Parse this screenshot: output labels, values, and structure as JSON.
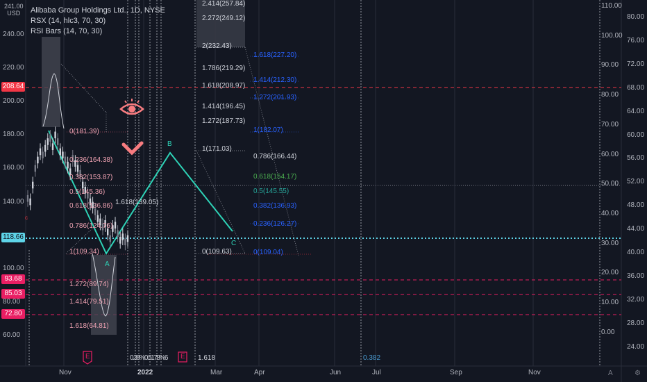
{
  "symbol": {
    "title": "Alibaba Group Holdings Ltd., 1D, NYSE",
    "indicator1": "RSX (14, hlc3, 70, 30)",
    "indicator2": "RSI Bars (14, 70, 30)"
  },
  "axis": {
    "currency": "USD",
    "top_value": "241.00",
    "left_ticks": [
      {
        "label": "240.00",
        "price": 240
      },
      {
        "label": "220.00",
        "price": 220
      },
      {
        "label": "200.00",
        "price": 200
      },
      {
        "label": "180.00",
        "price": 180
      },
      {
        "label": "160.00",
        "price": 160
      },
      {
        "label": "140.00",
        "price": 140
      },
      {
        "label": "100.00",
        "price": 100
      },
      {
        "label": "80.00",
        "price": 80
      },
      {
        "label": "60.00",
        "price": 60
      }
    ],
    "price_labels": [
      {
        "label": "208.64",
        "price": 208.64,
        "color": "#f23645"
      },
      {
        "label": "118.66",
        "price": 118.66,
        "color": "#5ed4e8"
      },
      {
        "label": "93.68",
        "price": 93.68,
        "color": "#e91e63"
      },
      {
        "label": "85.03",
        "price": 85.03,
        "color": "#e91e63"
      },
      {
        "label": "72.80",
        "price": 72.8,
        "color": "#e91e63"
      }
    ],
    "rsi_ticks": [
      "110.00",
      "100.00",
      "90.00",
      "80.00",
      "70.00",
      "60.00",
      "50.00",
      "40.00",
      "30.00",
      "20.00",
      "10.00",
      "0.00"
    ],
    "right_ticks": [
      "80.00",
      "76.00",
      "72.00",
      "68.00",
      "64.00",
      "60.00",
      "56.00",
      "52.00",
      "48.00",
      "44.00",
      "40.00",
      "36.00",
      "32.00",
      "28.00",
      "24.00"
    ],
    "x_ticks": [
      {
        "label": "Nov",
        "bold": false
      },
      {
        "label": "2022",
        "bold": true
      },
      {
        "label": "Mar",
        "bold": false
      },
      {
        "label": "Apr",
        "bold": false
      },
      {
        "label": "Jun",
        "bold": false
      },
      {
        "label": "Jul",
        "bold": false
      },
      {
        "label": "Sep",
        "bold": false
      },
      {
        "label": "Nov",
        "bold": false
      }
    ],
    "corner_right": "A",
    "corner_left": "⚙"
  },
  "fib_left": [
    {
      "text": "0(181.39)",
      "price": 181.39
    },
    {
      "text": "0.236(164.38)",
      "price": 164.38
    },
    {
      "text": "0.382(153.87)",
      "price": 153.87
    },
    {
      "text": "0.5(145.36)",
      "price": 145.36
    },
    {
      "text": "0.618(136.86)",
      "price": 136.86
    },
    {
      "text": "0.786(124.76)",
      "price": 124.76
    },
    {
      "text": "1(109.34)",
      "price": 109.34
    },
    {
      "text": "1.272(89.74)",
      "price": 89.74
    },
    {
      "text": "1.414(79.51)",
      "price": 79.51
    },
    {
      "text": "1.618(64.81)",
      "price": 64.81
    }
  ],
  "fib_left_extra": {
    "text": "1.618(139.05)",
    "price": 139.05
  },
  "fib_mid": [
    {
      "text": "2.414(257.84)",
      "price": 257.84
    },
    {
      "text": "2.272(249.12)",
      "price": 249.12
    },
    {
      "text": "2(232.43)",
      "price": 232.43
    },
    {
      "text": "1.786(219.29)",
      "price": 219.29
    },
    {
      "text": "1.618(208.97)",
      "price": 208.97
    },
    {
      "text": "1.414(196.45)",
      "price": 196.45
    },
    {
      "text": "1.272(187.73)",
      "price": 187.73
    },
    {
      "text": "1(171.03)",
      "price": 171.03
    },
    {
      "text": "0(109.63)",
      "price": 109.63
    }
  ],
  "fib_right": [
    {
      "text": "1.618(227.20)",
      "price": 227.2,
      "color": "#2962ff"
    },
    {
      "text": "1.414(212.30)",
      "price": 212.3,
      "color": "#2962ff"
    },
    {
      "text": "1.272(201.93)",
      "price": 201.93,
      "color": "#2962ff"
    },
    {
      "text": "1(182.07)",
      "price": 182.07,
      "color": "#2962ff"
    },
    {
      "text": "0.786(166.44)",
      "price": 166.44,
      "color": "#d1d4dc"
    },
    {
      "text": "0.618(154.17)",
      "price": 154.17,
      "color": "#4caf50"
    },
    {
      "text": "0.5(145.55)",
      "price": 145.55,
      "color": "#26a69a"
    },
    {
      "text": "0.382(136.93)",
      "price": 136.93,
      "color": "#2962ff"
    },
    {
      "text": "0.236(126.27)",
      "price": 126.27,
      "color": "#2962ff"
    },
    {
      "text": "0(109.04)",
      "price": 109.04,
      "color": "#2962ff"
    }
  ],
  "pattern_labels": {
    "a": "A",
    "b": "B",
    "c": "C"
  },
  "bottom": {
    "label_cluster": "0.38%0.5178%6",
    "label_1618": "1.618",
    "label_0382": "0.382",
    "earnings_1": "E",
    "earnings_2": "E"
  },
  "colors": {
    "background": "#131722",
    "teal": "#2ed3b7",
    "red_dash": "#f23645",
    "pink_dash": "#e91e63",
    "cyan_dot": "#5ed4e8",
    "blue_fib": "#2962ff"
  }
}
